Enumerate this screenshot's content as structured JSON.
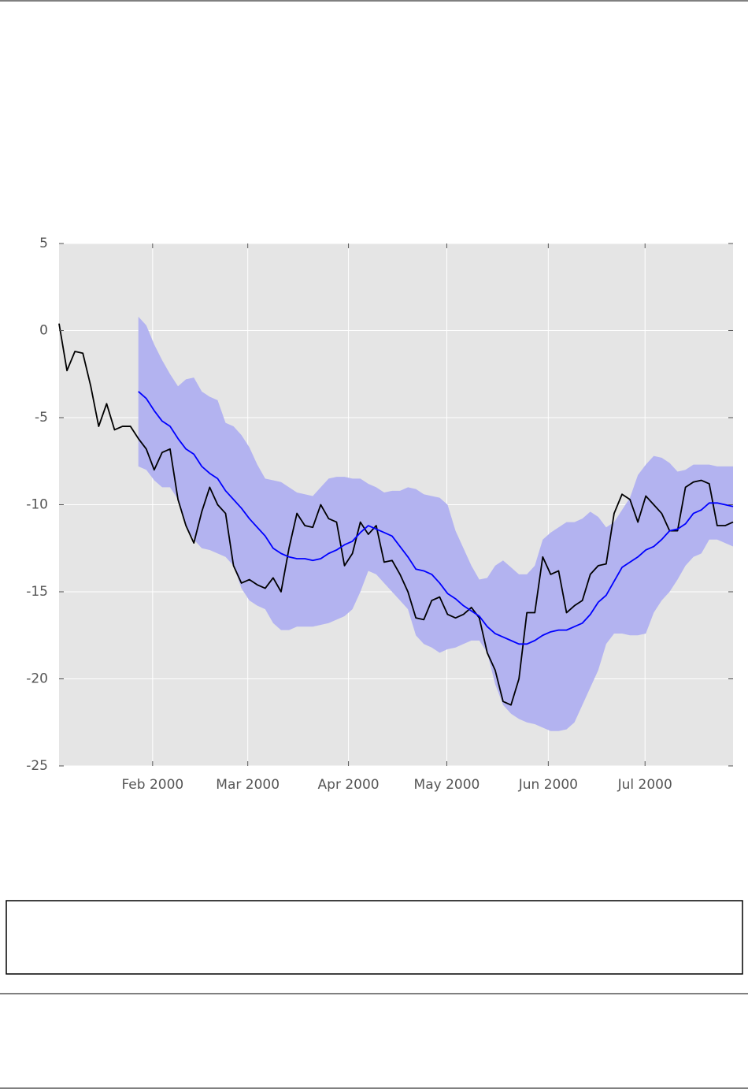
{
  "chart_data": {
    "type": "line",
    "xlim": [
      0,
      85
    ],
    "xticks": [
      {
        "value": 11.8,
        "label": "Feb 2000"
      },
      {
        "value": 23.8,
        "label": "Mar 2000"
      },
      {
        "value": 36.5,
        "label": "Apr 2000"
      },
      {
        "value": 48.9,
        "label": "May 2000"
      },
      {
        "value": 61.7,
        "label": "Jun 2000"
      },
      {
        "value": 73.9,
        "label": "Jul 2000"
      }
    ],
    "ylim": [
      -25,
      5
    ],
    "yticks": [
      -25,
      -20,
      -15,
      -10,
      -5,
      0,
      5
    ],
    "grid": true,
    "series": [
      {
        "color": "#000000",
        "values": [
          0.4,
          -2.3,
          -1.2,
          -1.3,
          -3.2,
          -5.5,
          -4.2,
          -5.7,
          -5.5,
          -5.5,
          -6.2,
          -6.8,
          -8.0,
          -7.0,
          -6.8,
          -9.7,
          -11.2,
          -12.2,
          -10.4,
          -9.0,
          -10.0,
          -10.5,
          -13.5,
          -14.5,
          -14.3,
          -14.6,
          -14.8,
          -14.2,
          -15.0,
          -12.5,
          -10.5,
          -11.2,
          -11.3,
          -10.0,
          -10.8,
          -11.0,
          -13.5,
          -12.8,
          -11.0,
          -11.7,
          -11.2,
          -13.3,
          -13.2,
          -14.0,
          -15.0,
          -16.5,
          -16.6,
          -15.5,
          -15.3,
          -16.3,
          -16.5,
          -16.3,
          -15.9,
          -16.5,
          -18.5,
          -19.5,
          -21.3,
          -21.5,
          -20.0,
          -16.2,
          -16.2,
          -13.0,
          -14.0,
          -13.8,
          -16.2,
          -15.8,
          -15.5,
          -14.0,
          -13.5,
          -13.4,
          -10.5,
          -9.4,
          -9.7,
          -11.0,
          -9.5,
          -10.0,
          -10.5,
          -11.5,
          -11.5,
          -9.0,
          -8.7,
          -8.6,
          -8.8,
          -11.2,
          -11.2,
          -11.0
        ]
      },
      {
        "color": "#0000ff",
        "values": [
          null,
          null,
          null,
          null,
          null,
          null,
          null,
          null,
          null,
          null,
          -3.5,
          -3.9,
          -4.6,
          -5.2,
          -5.5,
          -6.2,
          -6.8,
          -7.1,
          -7.8,
          -8.2,
          -8.5,
          -9.2,
          -9.7,
          -10.2,
          -10.8,
          -11.3,
          -11.8,
          -12.5,
          -12.8,
          -13.0,
          -13.1,
          -13.1,
          -13.2,
          -13.1,
          -12.8,
          -12.6,
          -12.3,
          -12.1,
          -11.6,
          -11.2,
          -11.4,
          -11.6,
          -11.8,
          -12.4,
          -13.0,
          -13.7,
          -13.8,
          -14.0,
          -14.5,
          -15.1,
          -15.4,
          -15.8,
          -16.1,
          -16.4,
          -17.0,
          -17.4,
          -17.6,
          -17.8,
          -18.0,
          -18.0,
          -17.8,
          -17.5,
          -17.3,
          -17.2,
          -17.2,
          -17.0,
          -16.8,
          -16.3,
          -15.6,
          -15.2,
          -14.4,
          -13.6,
          -13.3,
          -13.0,
          -12.6,
          -12.4,
          -12.0,
          -11.5,
          -11.4,
          -11.1,
          -10.5,
          -10.3,
          -9.9,
          -9.9,
          -10.0,
          -10.1
        ]
      }
    ],
    "band": {
      "color": "#b3b3f0",
      "upper": [
        null,
        null,
        null,
        null,
        null,
        null,
        null,
        null,
        null,
        null,
        0.8,
        0.3,
        -0.8,
        -1.7,
        -2.5,
        -3.2,
        -2.8,
        -2.7,
        -3.5,
        -3.8,
        -4.0,
        -5.3,
        -5.5,
        -6.0,
        -6.7,
        -7.7,
        -8.5,
        -8.6,
        -8.7,
        -9.0,
        -9.3,
        -9.4,
        -9.5,
        -9.0,
        -8.5,
        -8.4,
        -8.4,
        -8.5,
        -8.5,
        -8.8,
        -9.0,
        -9.3,
        -9.2,
        -9.2,
        -9.0,
        -9.1,
        -9.4,
        -9.5,
        -9.6,
        -10.0,
        -11.5,
        -12.5,
        -13.5,
        -14.3,
        -14.2,
        -13.5,
        -13.2,
        -13.6,
        -14.0,
        -14.0,
        -13.5,
        -12.0,
        -11.6,
        -11.3,
        -11.0,
        -11.0,
        -10.8,
        -10.4,
        -10.7,
        -11.3,
        -11.0,
        -10.3,
        -9.6,
        -8.3,
        -7.7,
        -7.2,
        -7.3,
        -7.6,
        -8.1,
        -8.0,
        -7.7,
        -7.7,
        -7.7,
        -7.8,
        -7.8,
        -7.8
      ],
      "lower": [
        null,
        null,
        null,
        null,
        null,
        null,
        null,
        null,
        null,
        null,
        -7.8,
        -8.0,
        -8.6,
        -9.0,
        -9.0,
        -9.7,
        -11.2,
        -12.0,
        -12.5,
        -12.6,
        -12.8,
        -13.0,
        -13.5,
        -14.8,
        -15.5,
        -15.8,
        -16.0,
        -16.8,
        -17.2,
        -17.2,
        -17.0,
        -17.0,
        -17.0,
        -16.9,
        -16.8,
        -16.6,
        -16.4,
        -16.0,
        -15.0,
        -13.8,
        -14.0,
        -14.5,
        -15.0,
        -15.5,
        -16.0,
        -17.5,
        -18.0,
        -18.2,
        -18.5,
        -18.3,
        -18.2,
        -18.0,
        -17.8,
        -17.8,
        -18.5,
        -20.3,
        -21.5,
        -22.0,
        -22.3,
        -22.5,
        -22.6,
        -22.8,
        -23.0,
        -23.0,
        -22.9,
        -22.5,
        -21.5,
        -20.5,
        -19.5,
        -18.0,
        -17.4,
        -17.4,
        -17.5,
        -17.5,
        -17.4,
        -16.2,
        -15.5,
        -15.0,
        -14.3,
        -13.5,
        -13.0,
        -12.8,
        -12.0,
        -12.0,
        -12.2,
        -12.4
      ]
    }
  }
}
